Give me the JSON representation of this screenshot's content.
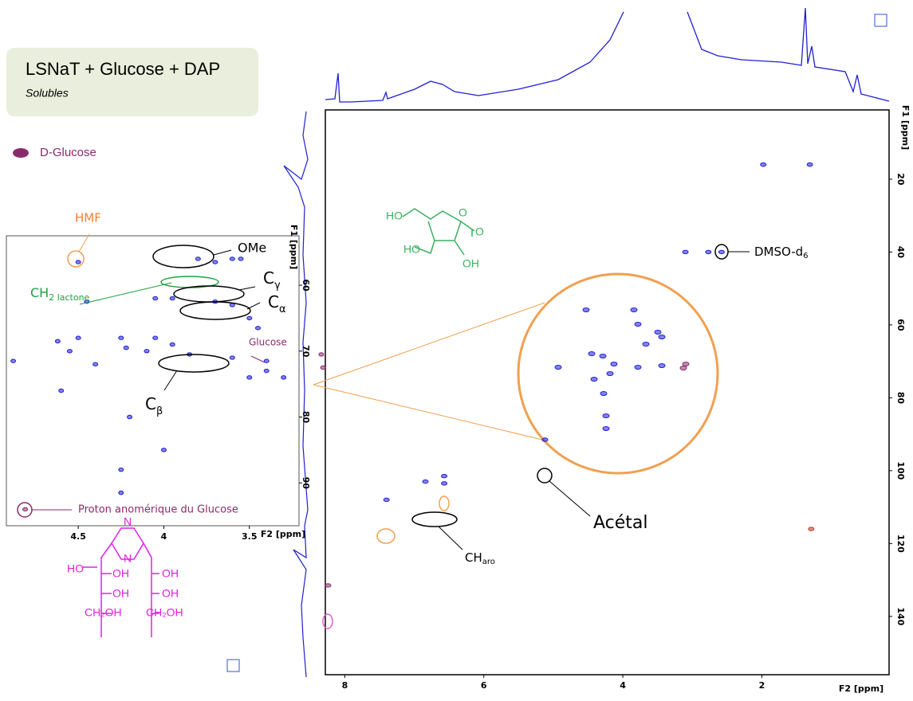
{
  "title": "LSNaT + Glucose + DAP",
  "subtitle": "Solubles",
  "legend": [
    {
      "name": "D-Glucose",
      "color": "#8b2a6b"
    }
  ],
  "chart_data": [
    {
      "type": "scatter",
      "x_label": "F2 [ppm]",
      "y_label": "F1 [ppm]",
      "xlim": [
        8.28,
        0.17
      ],
      "ylim": [
        1,
        156
      ],
      "xticks": [
        8,
        6,
        4,
        2
      ],
      "yticks": [
        20,
        40,
        60,
        80,
        100,
        120,
        140
      ],
      "series": [
        {
          "color": "#1f1fd6",
          "x": [
            1.98,
            1.31,
            3.1,
            2.77,
            2.58,
            6.57,
            6.57,
            6.84,
            7.4,
            5.12
          ],
          "y": [
            16,
            16,
            40,
            40,
            40,
            101.5,
            103.5,
            103,
            108,
            91.5
          ]
        },
        {
          "color": "#8b2a6b",
          "x": [
            8.24
          ],
          "y": [
            131.5
          ]
        },
        {
          "color": "#c0392b",
          "x": [
            1.29
          ],
          "y": [
            116
          ]
        }
      ]
    },
    {
      "type": "scatter",
      "x_label": "F2 [ppm]",
      "y_label": "F1 [ppm]",
      "xlim": [
        4.92,
        3.21
      ],
      "ylim": [
        52.5,
        96.5
      ],
      "xticks": [
        4.5,
        4.0,
        3.5
      ],
      "yticks": [
        60,
        70,
        80,
        90
      ],
      "series": [
        {
          "color": "#1f1fd6",
          "x": [
            4.5,
            3.8,
            3.7,
            3.6,
            3.55,
            3.95,
            4.05,
            3.7,
            3.6,
            3.5,
            3.45,
            3.4,
            3.85,
            3.6,
            4.62,
            4.55,
            4.5,
            4.25,
            4.22,
            4.1,
            4.05,
            3.95,
            4.6,
            4.4,
            4.2,
            4.0,
            4.25,
            4.25,
            4.88,
            3.3,
            3.5,
            3.4,
            4.45
          ],
          "y": [
            56.5,
            56,
            56.5,
            56,
            56,
            62,
            62,
            62.5,
            63,
            65,
            66.5,
            71.5,
            70.5,
            71,
            68.5,
            70,
            68,
            68,
            69.5,
            70,
            68,
            69,
            76,
            72,
            80,
            85,
            88,
            91.5,
            71.5,
            74,
            74,
            73,
            62.5
          ]
        },
        {
          "color": "#8b2a6b",
          "x": [
            3.08,
            3.07,
            4.81
          ],
          "y": [
            70.5,
            72.5,
            94
          ]
        }
      ]
    },
    {
      "type": "scatter",
      "xlim": [
        5.0,
        2.5
      ],
      "ylim": [
        50,
        100
      ],
      "series": [
        {
          "color": "#1f1fd6",
          "x": [
            4.15,
            3.55,
            3.5,
            3.25,
            3.2,
            3.4,
            4.08,
            3.94,
            4.5,
            3.8,
            3.5,
            3.2,
            4.05,
            3.85,
            3.93,
            3.9,
            3.9
          ],
          "y": [
            59,
            59,
            62.6,
            64.6,
            65.8,
            67.6,
            70,
            70.6,
            73.4,
            72.6,
            73.4,
            73,
            76.4,
            75,
            80,
            85.6,
            88.8
          ]
        },
        {
          "color": "#8b2a6b",
          "x": [
            2.93,
            2.9,
            4.74
          ],
          "y": [
            73.6,
            72.6,
            92
          ]
        }
      ]
    }
  ],
  "annotations": {
    "hmf": {
      "text": "HMF"
    },
    "ome": {
      "text": "OMe"
    },
    "ch2_lactone": {
      "text": "CH",
      "sub": "2 lactone"
    },
    "c_gamma": {
      "text": "C",
      "sub": "γ"
    },
    "c_alpha": {
      "text": "C",
      "sub": "α"
    },
    "c_beta": {
      "text": "C",
      "sub": "β"
    },
    "glucose": {
      "text": "Glucose"
    },
    "anomeric": {
      "text": "Proton anomérique du Glucose"
    },
    "dmso": {
      "text": "DMSO-d",
      "sub": "6"
    },
    "acetal": {
      "text": "Acétal"
    },
    "ch_aro": {
      "text": "CH",
      "sub": "aro"
    }
  },
  "structures": {
    "lactone": [
      "HO",
      "O",
      "O",
      "HO",
      "OH"
    ],
    "pyrazine": [
      "N",
      "N",
      "HO",
      "OH",
      "OH",
      "OH",
      "OH",
      "CH₂OH",
      "CH₂OH"
    ]
  }
}
